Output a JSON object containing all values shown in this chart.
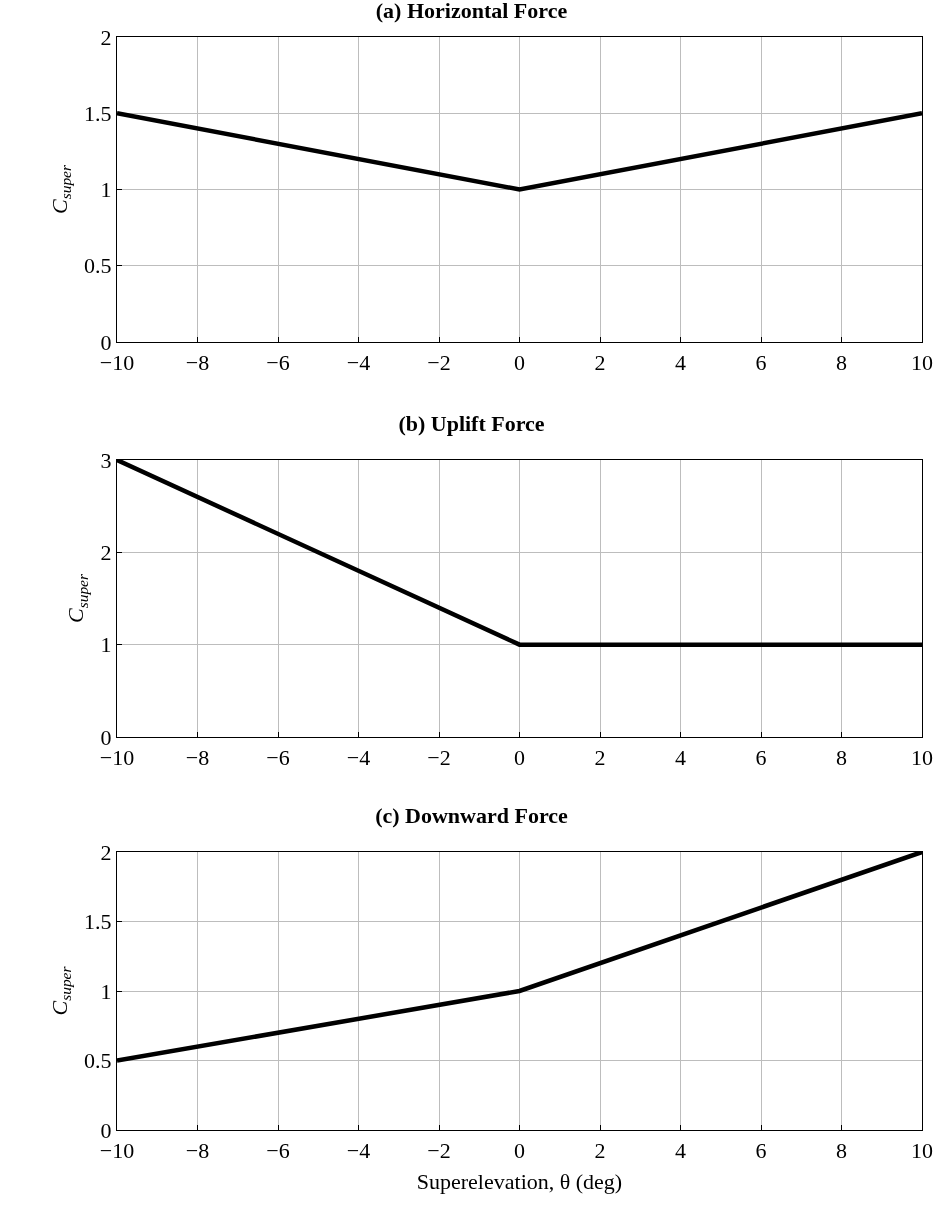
{
  "chart_data": [
    {
      "type": "line",
      "title": "(a) Horizontal Force",
      "ylabel": "C$_{super}$",
      "x": [
        -10,
        0,
        10
      ],
      "series": [
        {
          "color": "#000000",
          "values": [
            1.5,
            1,
            1.5
          ]
        }
      ],
      "xlim": [
        -10,
        10
      ],
      "xticks": [
        -10,
        -8,
        -6,
        -4,
        -2,
        0,
        2,
        4,
        6,
        8,
        10
      ],
      "ylim": [
        0,
        2
      ],
      "yticks": [
        0,
        0.5,
        1,
        1.5,
        2
      ],
      "grid": true
    },
    {
      "type": "line",
      "title": "(b) Uplift Force",
      "ylabel": "C$_{super}$",
      "x": [
        -10,
        0,
        10
      ],
      "series": [
        {
          "color": "#000000",
          "values": [
            3,
            1,
            1
          ]
        }
      ],
      "xlim": [
        -10,
        10
      ],
      "xticks": [
        -10,
        -8,
        -6,
        -4,
        -2,
        0,
        2,
        4,
        6,
        8,
        10
      ],
      "ylim": [
        0,
        3
      ],
      "yticks": [
        0,
        1,
        2,
        3
      ],
      "grid": true
    },
    {
      "type": "line",
      "title": "(c) Downward Force",
      "xlabel": "Superelevation, θ (deg)",
      "ylabel": "C$_{super}$",
      "x": [
        -10,
        0,
        10
      ],
      "series": [
        {
          "color": "#000000",
          "values": [
            0.5,
            1,
            2
          ]
        }
      ],
      "xlim": [
        -10,
        10
      ],
      "xticks": [
        -10,
        -8,
        -6,
        -4,
        -2,
        0,
        2,
        4,
        6,
        8,
        10
      ],
      "ylim": [
        0,
        2
      ],
      "yticks": [
        0,
        0.5,
        1,
        1.5,
        2
      ],
      "grid": true
    }
  ]
}
